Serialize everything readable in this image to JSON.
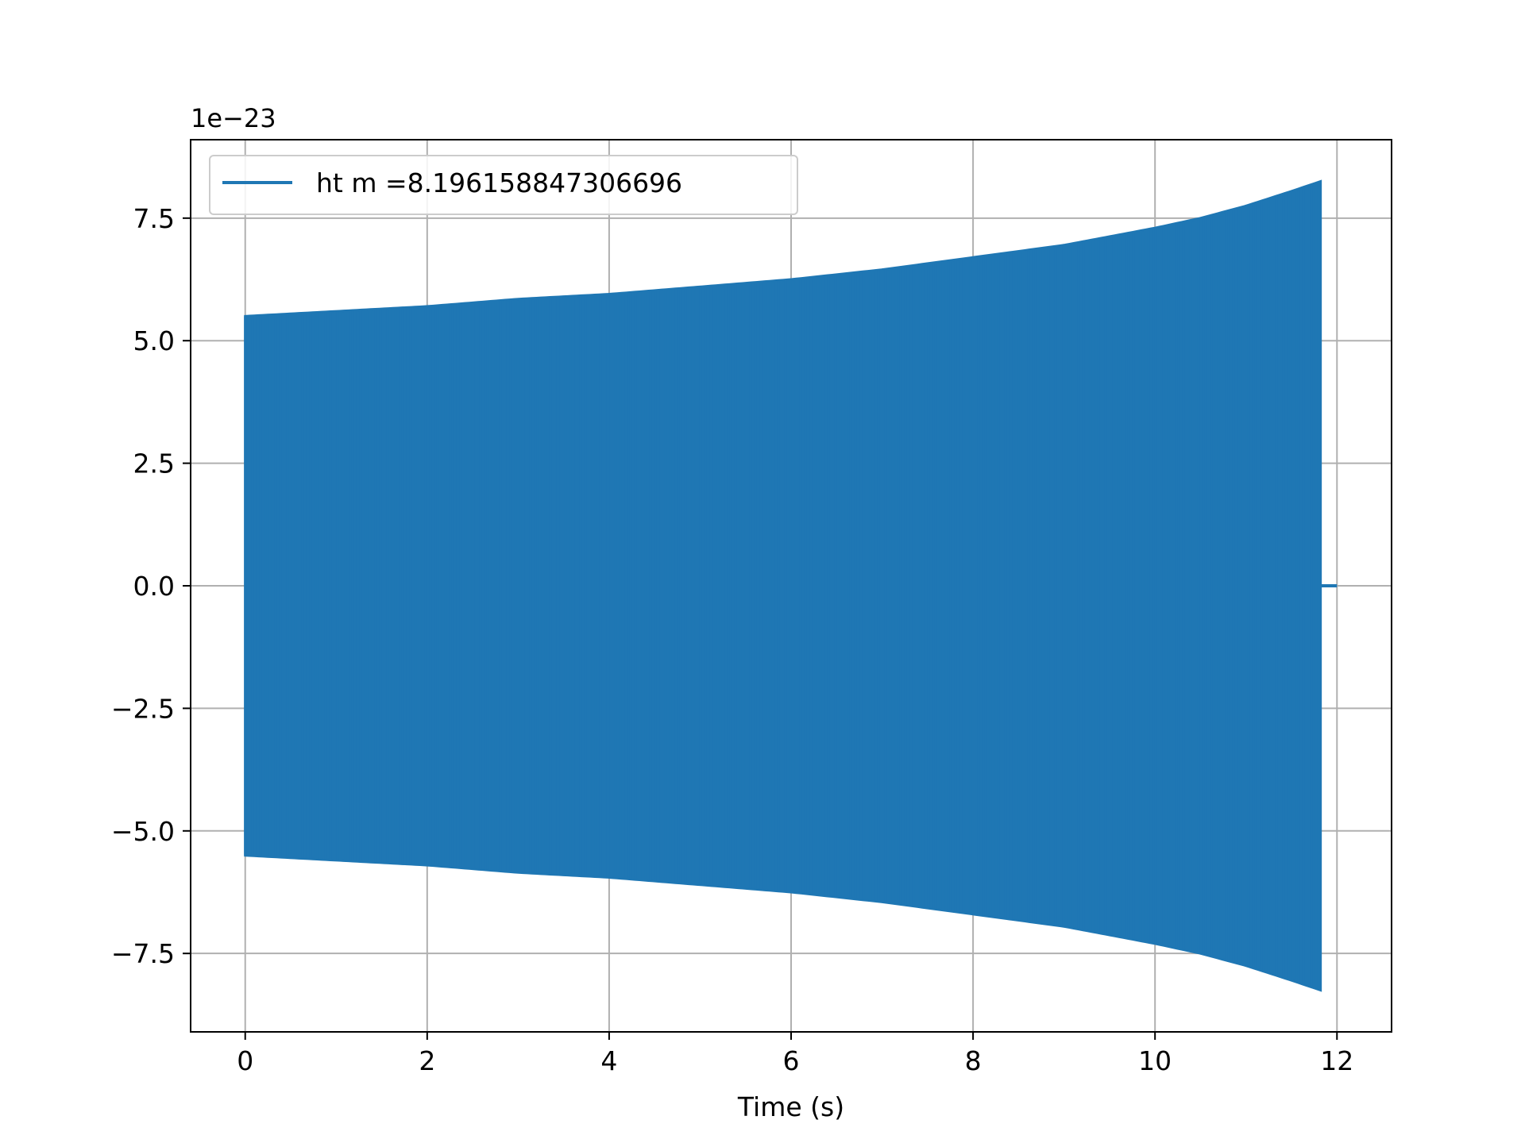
{
  "chart_data": {
    "type": "line",
    "title": "",
    "xlabel": "Time (s)",
    "ylabel": "",
    "offset_text": "1e−23",
    "xlim": [
      -0.6,
      12.6
    ],
    "ylim": [
      -9.1,
      9.1
    ],
    "xticks": [
      0,
      2,
      4,
      6,
      8,
      10,
      12
    ],
    "xtick_labels": [
      "0",
      "2",
      "4",
      "6",
      "8",
      "10",
      "12"
    ],
    "yticks": [
      -7.5,
      -5.0,
      -2.5,
      0.0,
      2.5,
      5.0,
      7.5
    ],
    "ytick_labels": [
      "−7.5",
      "−5.0",
      "−2.5",
      "0.0",
      "2.5",
      "5.0",
      "7.5"
    ],
    "grid": true,
    "legend_position": "upper-left",
    "series": [
      {
        "name": "ht m =8.196158847306696",
        "color": "#1f77b4",
        "description_kind": "chirp",
        "t_start": 0.0,
        "t_end_signal": 11.82,
        "t_end": 12.0,
        "envelope_t": [
          0.0,
          1.0,
          2.0,
          3.0,
          4.0,
          5.0,
          6.0,
          7.0,
          8.0,
          9.0,
          10.0,
          10.5,
          11.0,
          11.5,
          11.82
        ],
        "envelope_amplitude": [
          5.5,
          5.6,
          5.7,
          5.85,
          5.95,
          6.1,
          6.25,
          6.45,
          6.7,
          6.95,
          7.3,
          7.5,
          7.75,
          8.05,
          8.25
        ]
      }
    ]
  }
}
